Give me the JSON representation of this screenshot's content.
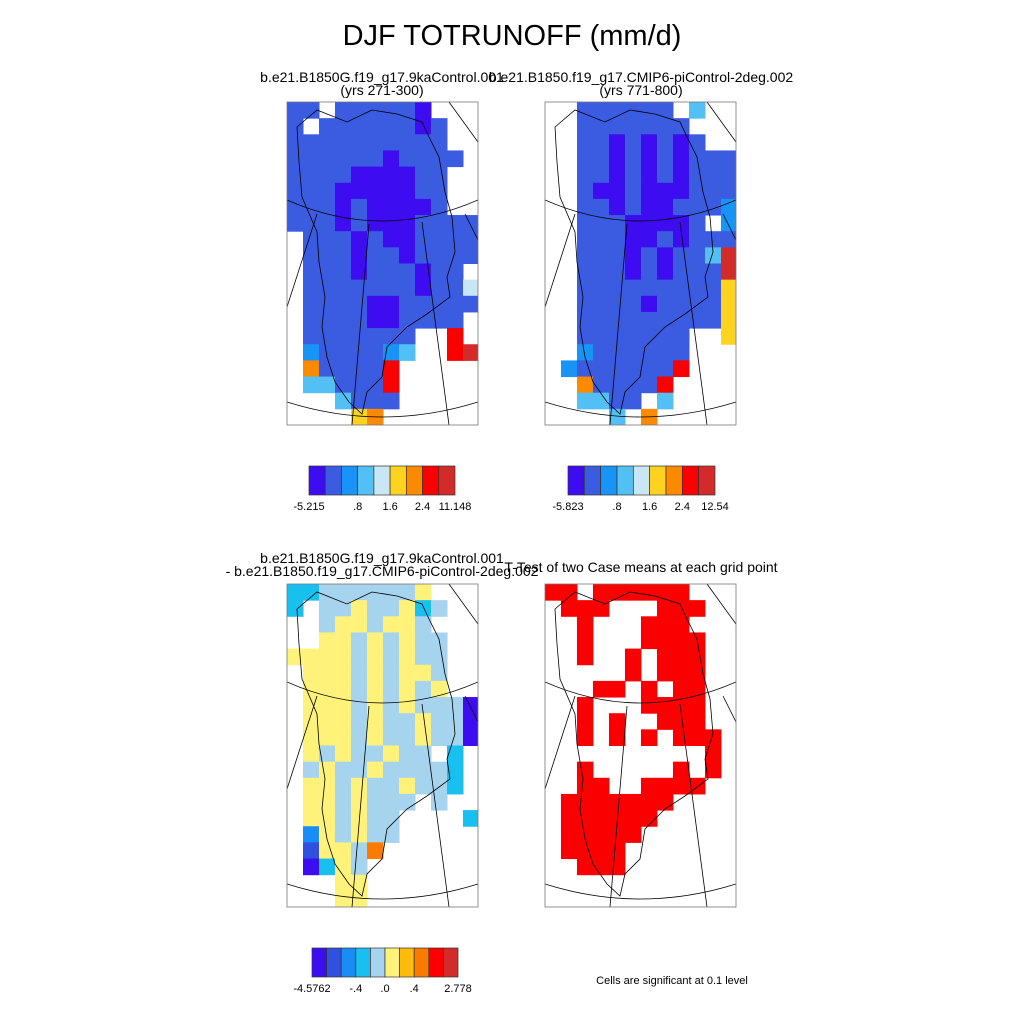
{
  "title": "DJF TOTRUNOFF (mm/d)",
  "panels": [
    {
      "title_lines": [
        "b.e21.B1850G.f19_g17.9kaControl.001",
        "(yrs 271-300)"
      ],
      "palette": [
        "#3e0cf0",
        "#3b5ce0",
        "#1893f6",
        "#52c0f4",
        "#c8e6f6",
        "#fdd320",
        "#fb8a00",
        "#fa0000",
        "#d32a2a"
      ],
      "grid": [
        "22.222221....",
        "2.22222212..",
        "2222222222..",
        "22222212222.",
        "2222111122..",
        "2221111122..",
        "2221211112..",
        "222121112222",
        ".22212112222",
        ".22212212222",
        ".2221222122.",
        ".22222221225",
        ".22221122222",
        ".2222112222.",
        ".2222222..8.",
        ".3222234..89",
        ".722228.....",
        ".442228.....",
        "...4222.....",
        "....67......"
      ],
      "colorbar": {
        "labels": [
          "-5.215",
          ".8",
          "1.6",
          "2.4",
          "11.148"
        ]
      }
    },
    {
      "title_lines": [
        "b.e21.B1850.f19_g17.CMIP6-piControl-2deg.002",
        "(yrs 771-800)"
      ],
      "palette": [
        "#3e0cf0",
        "#3b5ce0",
        "#1893f6",
        "#52c0f4",
        "#c8e6f6",
        "#fdd320",
        "#fb8a00",
        "#fa0000",
        "#d32a2a"
      ],
      "grid": [
        "..222222.4..",
        "..2222222...",
        "..22121212..",
        "..2212121222",
        "..2212121222",
        "..2112111222",
        "..2212112223",
        "..22211112.3",
        "..2221121222",
        "..2221212249",
        "..2221212229",
        "..2222222226",
        "..2222122226",
        "..2222222226",
        "..2222222..6",
        "..3222222...",
        ".32222228...",
        "..722228....",
        "..4422.4....",
        "....4.7....."
      ],
      "colorbar": {
        "labels": [
          "-5.823",
          ".8",
          "1.6",
          "2.4",
          "12.54"
        ]
      }
    },
    {
      "title_lines": [
        "b.e21.B1850G.f19_g17.9kaControl.001",
        "- b.e21.B1850.f19_g17.CMIP6-piControl-2deg.002"
      ],
      "palette": [
        "#3e0cf0",
        "#3050e0",
        "#1a8cf5",
        "#18c0f0",
        "#a6d4ee",
        "#fff27a",
        "#fdbb10",
        "#fb7a00",
        "#fa0000",
        "#d32a2a"
      ],
      "grid": [
        "445555556...",
        "4.55655645..",
        "..5665665...",
        "..66565655..",
        "6666565655..",
        ".666565665..",
        ".666565656..",
        ".66656565551",
        ".66656556551",
        ".66656556551",
        ".65655655.4.",
        ".5655655554.",
        ".6656556554.",
        ".6656555.5..",
        ".665655....4",
        ".365655.....",
        ".26658......",
        ".1465.......",
        "...66.......",
        "...66......."
      ],
      "colorbar": {
        "labels": [
          "-4.5762",
          "-.4",
          ".0",
          ".4",
          "2.778"
        ]
      }
    },
    {
      "title_lines": [
        "T-Test of two Case means at each grid point"
      ],
      "palette": [
        "#fa0000"
      ],
      "grid": [
        "11.111111...",
        ".111...111..",
        "..1...111...",
        "..1...1111..",
        "..1..1.111..",
        ".....1.111..",
        "...11.1.11..",
        "..1...1111..",
        "..1.1..111..",
        "..1.1.1.111.",
        "..........1.",
        "..1.....1.1.",
        "..11..1111..",
        ".1111111....",
        ".111111.....",
        ".11111......",
        ".1111.......",
        "..111.......",
        "............",
        "............"
      ],
      "note": "Cells are significant at 0.1 level"
    }
  ]
}
